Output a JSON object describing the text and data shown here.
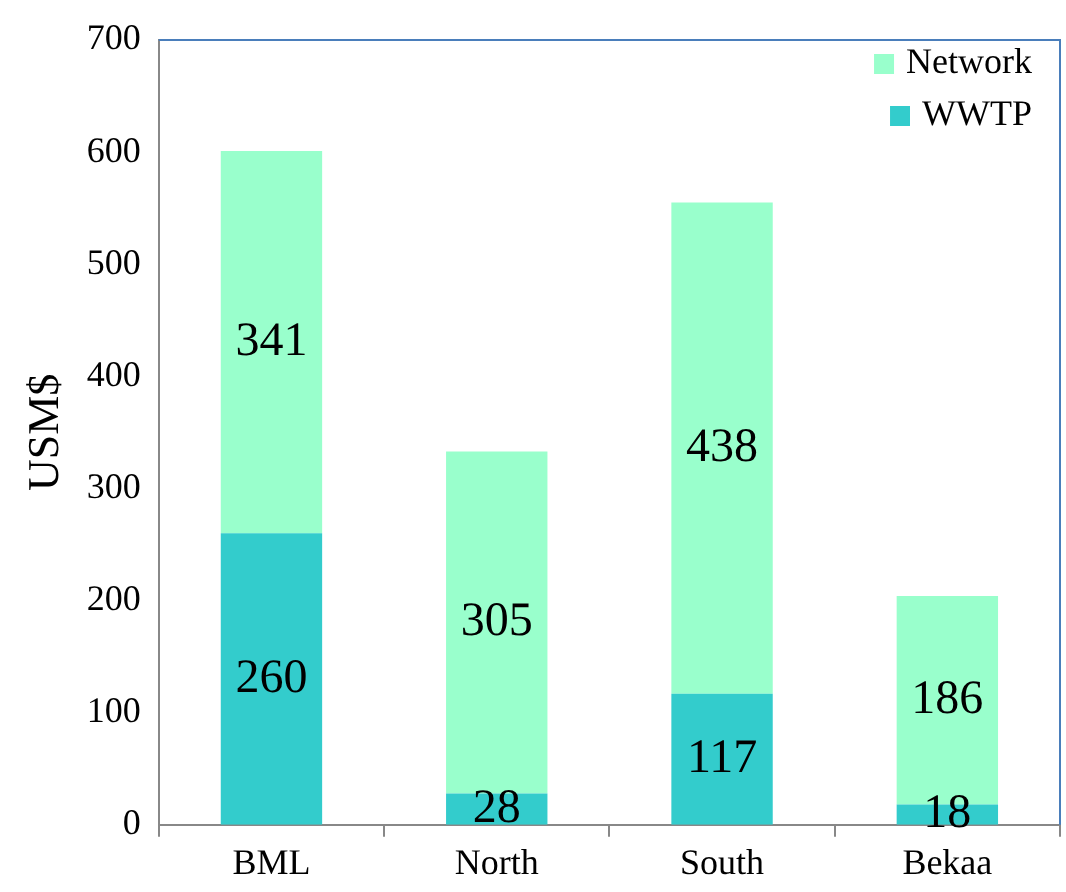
{
  "chart_data": {
    "type": "bar",
    "stacked": true,
    "categories": [
      "BML",
      "North",
      "South",
      "Bekaa"
    ],
    "series": [
      {
        "name": "WWTP",
        "color": "#33cccc",
        "values": [
          260,
          28,
          117,
          18
        ]
      },
      {
        "name": "Network",
        "color": "#99ffcc",
        "values": [
          341,
          305,
          438,
          186
        ]
      }
    ],
    "ylabel": "USM$",
    "ylim": [
      0,
      700
    ],
    "yticks": [
      0,
      100,
      200,
      300,
      400,
      500,
      600,
      700
    ],
    "grid": false,
    "legend": "top right",
    "data_labels": true
  }
}
